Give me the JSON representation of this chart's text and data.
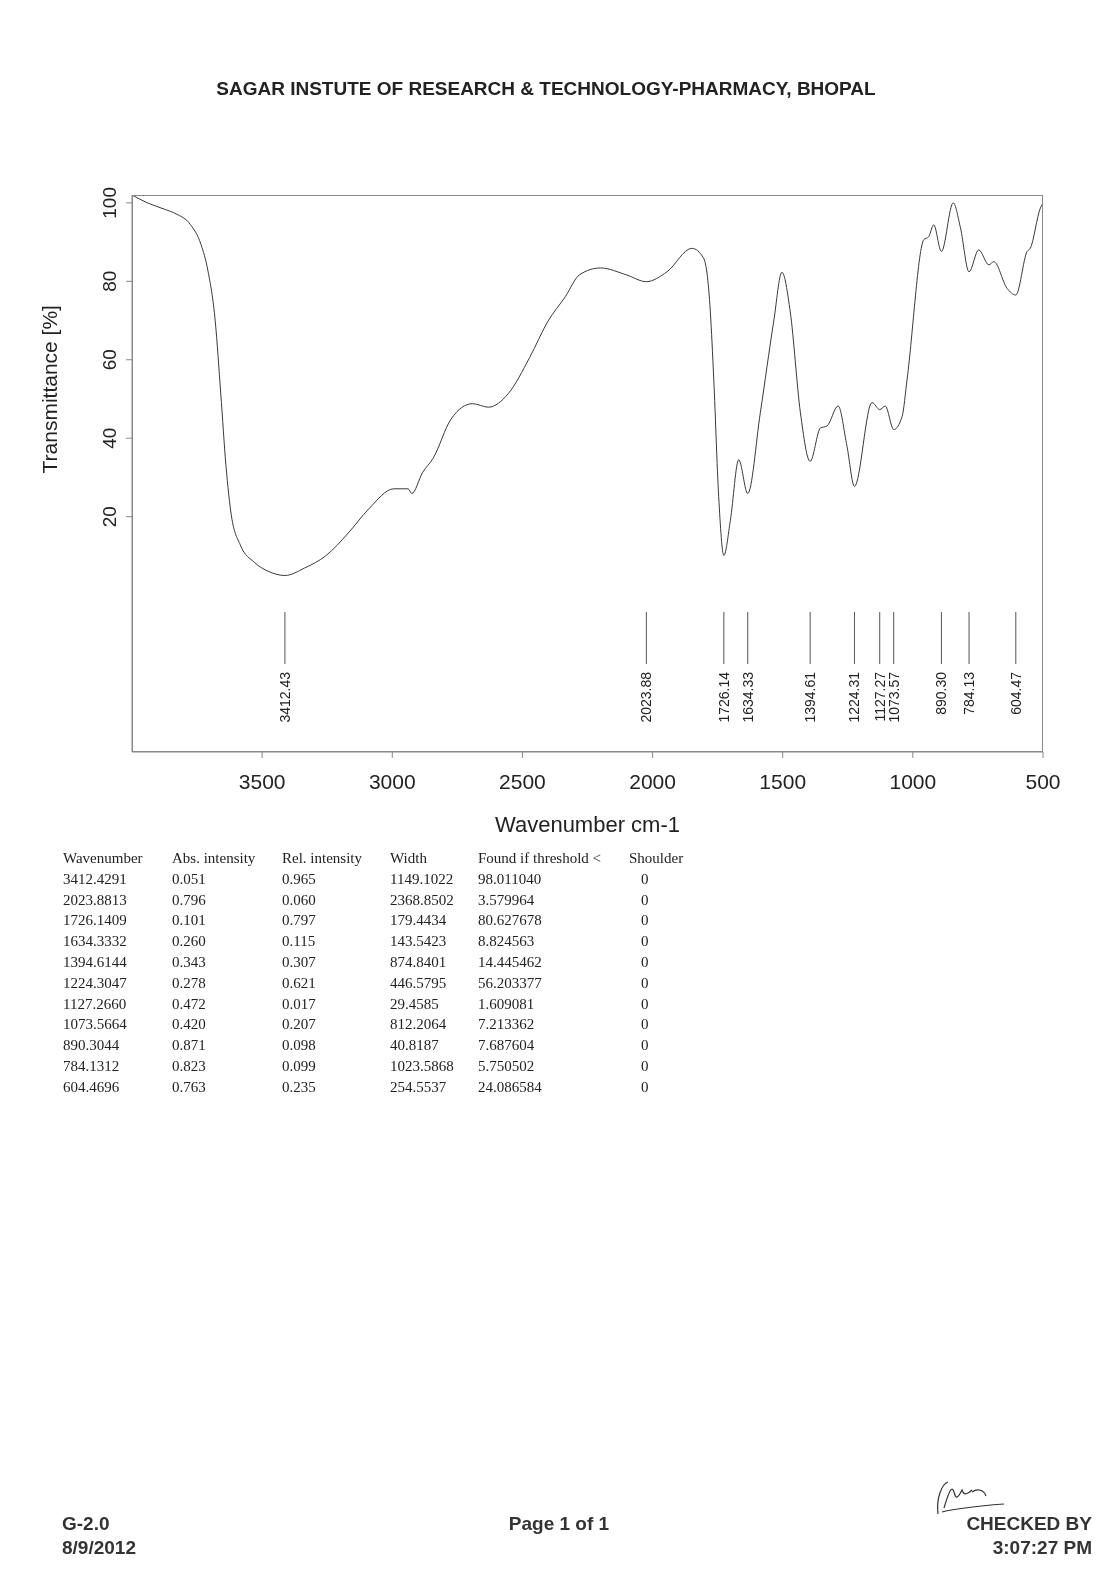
{
  "chart_data": {
    "type": "line",
    "title": "SAGAR INSTUTE OF RESEARCH & TECHNOLOGY-PHARMACY, BHOPAL",
    "xlabel": "Wavenumber cm-1",
    "ylabel": "Transmittance [%]",
    "xlim": [
      4000,
      500
    ],
    "xticks": [
      3500,
      3000,
      2500,
      2000,
      1500,
      1000,
      500
    ],
    "ylim": [
      -40,
      102
    ],
    "yticks": [
      20,
      40,
      60,
      80,
      100
    ],
    "grid": false,
    "legend": false,
    "marker": "none",
    "line_style": "solid",
    "series": [
      {
        "color": "#3a3a3a",
        "x": [
          4000,
          3941,
          3872,
          3831,
          3776,
          3735,
          3708,
          3680,
          3659,
          3639,
          3618,
          3584,
          3529,
          3474,
          3412.43,
          3337,
          3254,
          3172,
          3090,
          2994,
          2939,
          2925,
          2884,
          2843,
          2774,
          2692,
          2630,
          2554,
          2472,
          2403,
          2335,
          2280,
          2200,
          2099,
          2023.88,
          1945,
          1849,
          1804,
          1778,
          1765,
          1746,
          1726.14,
          1701,
          1669,
          1634.33,
          1586,
          1535,
          1503,
          1471,
          1432,
          1394.61,
          1355,
          1330,
          1287,
          1253,
          1224.31,
          1157,
          1127.27,
          1106,
          1073.57,
          1041,
          1022,
          958,
          939,
          920,
          890.3,
          845,
          817,
          784.13,
          747,
          708,
          689,
          638,
          604.47,
          561,
          549,
          510,
          500
        ],
        "values": [
          102,
          100,
          98.3,
          97.2,
          94.5,
          89.4,
          82.6,
          69.7,
          51.4,
          33,
          20.2,
          12.8,
          8.3,
          6,
          5,
          6.9,
          10.1,
          15.6,
          22,
          27.1,
          27.1,
          25.9,
          31.2,
          34.9,
          44.9,
          48.8,
          47.9,
          51.4,
          60.6,
          69.7,
          76.1,
          81.7,
          83.4,
          81.6,
          79.9,
          82.4,
          88.4,
          85.9,
          72.2,
          55.1,
          25.1,
          10.1,
          19.1,
          34.5,
          25.9,
          46.5,
          69.6,
          82.3,
          72.2,
          46.5,
          34.1,
          42.6,
          43.1,
          48.2,
          37.9,
          27.7,
          49.1,
          47.3,
          48.2,
          42.2,
          45.6,
          55.1,
          90.6,
          91.4,
          94.4,
          87.6,
          100,
          93.6,
          82.4,
          88,
          84.2,
          85,
          78.2,
          76.5,
          87.6,
          88.4,
          98.7,
          100
        ]
      }
    ],
    "ref_lines": [
      {
        "axis": "x",
        "value": 3412.43,
        "label": "3412.43",
        "color": "#555555"
      },
      {
        "axis": "x",
        "value": 2023.88,
        "label": "2023.88",
        "color": "#555555"
      },
      {
        "axis": "x",
        "value": 1726.14,
        "label": "1726.14",
        "color": "#555555"
      },
      {
        "axis": "x",
        "value": 1634.33,
        "label": "1634.33",
        "color": "#555555"
      },
      {
        "axis": "x",
        "value": 1394.61,
        "label": "1394.61",
        "color": "#555555"
      },
      {
        "axis": "x",
        "value": 1224.31,
        "label": "1224.31",
        "color": "#555555"
      },
      {
        "axis": "x",
        "value": 1127.27,
        "label": "1127.27",
        "color": "#555555"
      },
      {
        "axis": "x",
        "value": 1073.57,
        "label": "1073.57",
        "color": "#555555"
      },
      {
        "axis": "x",
        "value": 890.3,
        "label": "890.30",
        "color": "#555555"
      },
      {
        "axis": "x",
        "value": 784.13,
        "label": "784.13",
        "color": "#555555"
      },
      {
        "axis": "x",
        "value": 604.47,
        "label": "604.47",
        "color": "#555555"
      }
    ],
    "annotations": [
      "Wavenumber",
      "Abs. intensity",
      "Rel. intensity",
      "Width",
      "Found if threshold <",
      "Shoulder",
      "3412.4291",
      "0.051",
      "0.965",
      "1149.1022",
      "98.011040",
      "0",
      "2023.8813",
      "0.796",
      "0.060",
      "2368.8502",
      "3.579964",
      "0",
      "1726.1409",
      "0.101",
      "0.797",
      "179.4434",
      "80.627678",
      "0",
      "1634.3332",
      "0.260",
      "0.115",
      "143.5423",
      "8.824563",
      "0",
      "1394.6144",
      "0.343",
      "0.307",
      "874.8401",
      "14.445462",
      "0",
      "1224.3047",
      "0.278",
      "0.621",
      "446.5795",
      "56.203377",
      "0",
      "1127.2660",
      "0.472",
      "0.017",
      "29.4585",
      "1.609081",
      "0",
      "1073.5664",
      "0.420",
      "0.207",
      "812.2064",
      "7.213362",
      "0",
      "890.3044",
      "0.871",
      "0.098",
      "40.8187",
      "7.687604",
      "0",
      "784.1312",
      "0.823",
      "0.099",
      "1023.5868",
      "5.750502",
      "0",
      "604.4696",
      "0.763",
      "0.235",
      "254.5537",
      "24.086584",
      "0",
      "G-2.0",
      "8/9/2012",
      "Page 1 of 1",
      "CHECKED BY",
      "3:07:27 PM"
    ]
  }
}
